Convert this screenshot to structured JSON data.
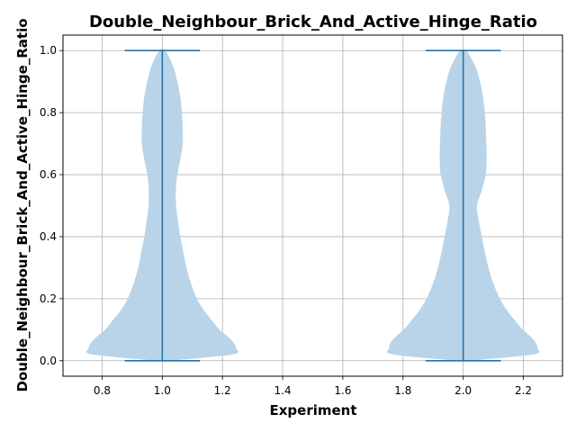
{
  "chart_data": {
    "type": "violin",
    "title": "Double_Neighbour_Brick_And_Active_Hinge_Ratio",
    "xlabel": "Experiment",
    "ylabel": "Double_Neighbour_Brick_And_Active_Hinge_Ratio",
    "xlim": [
      0.67,
      2.33
    ],
    "ylim": [
      -0.05,
      1.05
    ],
    "xticks": [
      "0.8",
      "1.0",
      "1.2",
      "1.4",
      "1.6",
      "1.8",
      "2.0",
      "2.2"
    ],
    "yticks": [
      "0.0",
      "0.2",
      "0.4",
      "0.6",
      "0.8",
      "1.0"
    ],
    "grid": true,
    "violin_color": "#b9d4e8",
    "line_color": "#2a72a8",
    "cap_halfwidth": 0.125,
    "violins": [
      {
        "position": 1.0,
        "min": 0.0,
        "max": 1.0,
        "density": {
          "y": [
            0.0,
            0.02,
            0.04,
            0.06,
            0.08,
            0.1,
            0.13,
            0.16,
            0.2,
            0.25,
            0.3,
            0.35,
            0.4,
            0.45,
            0.5,
            0.55,
            0.6,
            0.65,
            0.7,
            0.75,
            0.8,
            0.85,
            0.9,
            0.95,
            1.0
          ],
          "left": [
            0.0,
            0.055,
            0.063,
            0.06,
            0.054,
            0.046,
            0.037,
            0.03,
            0.024,
            0.02,
            0.017,
            0.013,
            0.01,
            0.006,
            0.0,
            0.0,
            0.0,
            0.0,
            0.0,
            0.0,
            0.0,
            0.0,
            0.0,
            0.0,
            0.0
          ],
          "right": [
            0.0,
            0.055,
            0.063,
            0.06,
            0.054,
            0.046,
            0.037,
            0.03,
            0.024,
            0.02,
            0.017,
            0.013,
            0.01,
            0.006,
            0.0,
            0.0,
            0.0,
            0.0,
            0.0,
            0.0,
            0.0,
            0.0,
            0.0,
            0.0,
            0.0
          ],
          "half_width": [
            0.02,
            0.232,
            0.245,
            0.235,
            0.215,
            0.19,
            0.165,
            0.14,
            0.115,
            0.095,
            0.08,
            0.07,
            0.06,
            0.052,
            0.046,
            0.045,
            0.05,
            0.06,
            0.068,
            0.068,
            0.065,
            0.06,
            0.05,
            0.036,
            0.01
          ]
        }
      },
      {
        "position": 2.0,
        "min": 0.0,
        "max": 1.0,
        "density": {
          "y": [
            0.0,
            0.02,
            0.04,
            0.06,
            0.08,
            0.1,
            0.13,
            0.16,
            0.2,
            0.25,
            0.3,
            0.35,
            0.4,
            0.45,
            0.5,
            0.55,
            0.6,
            0.65,
            0.7,
            0.75,
            0.8,
            0.85,
            0.9,
            0.95,
            1.0
          ],
          "half_width": [
            0.02,
            0.232,
            0.247,
            0.24,
            0.222,
            0.198,
            0.172,
            0.147,
            0.122,
            0.1,
            0.084,
            0.072,
            0.062,
            0.052,
            0.046,
            0.062,
            0.075,
            0.078,
            0.077,
            0.075,
            0.072,
            0.066,
            0.056,
            0.04,
            0.01
          ]
        }
      }
    ]
  }
}
